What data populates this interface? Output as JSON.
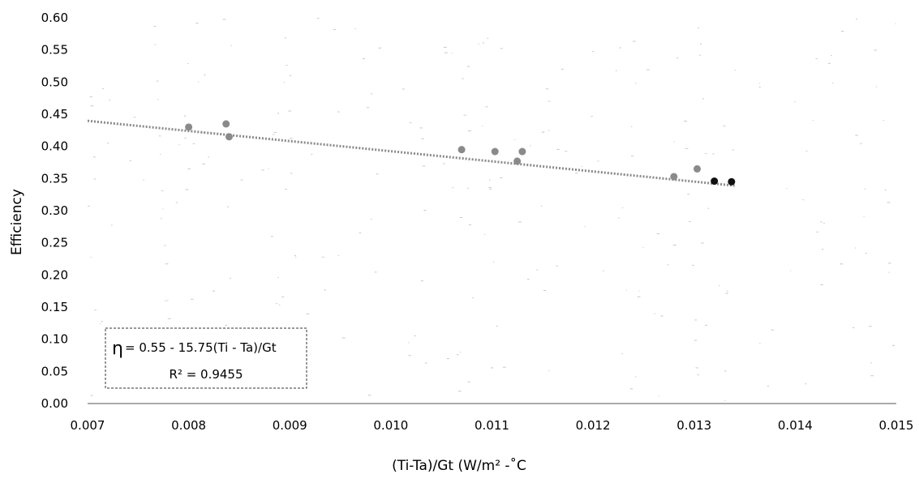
{
  "chart_data": {
    "type": "scatter",
    "xlabel": "(Ti-Ta)/Gt (W/m² -˚C",
    "ylabel": "Efficiency",
    "xlim": [
      0.007,
      0.015
    ],
    "ylim": [
      0.0,
      0.6
    ],
    "x_ticks": [
      "0.007",
      "0.008",
      "0.009",
      "0.010",
      "0.011",
      "0.012",
      "0.013",
      "0.014",
      "0.015"
    ],
    "y_ticks": [
      "0.00",
      "0.05",
      "0.10",
      "0.15",
      "0.20",
      "0.25",
      "0.30",
      "0.35",
      "0.40",
      "0.45",
      "0.50",
      "0.55",
      "0.60"
    ],
    "grid": false,
    "series": [
      {
        "color": "#8a8a8a",
        "points": [
          {
            "x": 0.008,
            "y": 0.43
          },
          {
            "x": 0.00837,
            "y": 0.435
          },
          {
            "x": 0.0084,
            "y": 0.415
          },
          {
            "x": 0.0107,
            "y": 0.395
          },
          {
            "x": 0.01103,
            "y": 0.392
          },
          {
            "x": 0.01125,
            "y": 0.377
          },
          {
            "x": 0.0113,
            "y": 0.392
          },
          {
            "x": 0.0128,
            "y": 0.353
          },
          {
            "x": 0.01303,
            "y": 0.365
          }
        ]
      },
      {
        "color": "#111111",
        "points": [
          {
            "x": 0.0132,
            "y": 0.346
          },
          {
            "x": 0.01337,
            "y": 0.345
          }
        ]
      }
    ],
    "trendline": {
      "style": "dotted",
      "color": "#8a8a8a",
      "x_start": 0.007,
      "x_end": 0.0134,
      "intercept": 0.55,
      "slope": -15.75
    },
    "annotation": {
      "eta": "η",
      "equation": " = 0.55 - 15.75(Ti - Ta)/Gt",
      "r_squared": "R² = 0.9455"
    }
  }
}
